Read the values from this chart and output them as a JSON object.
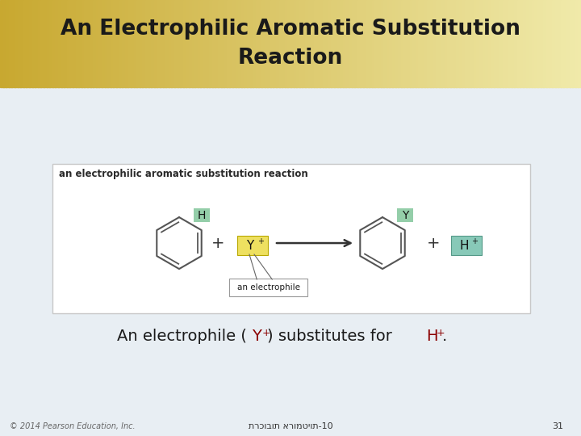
{
  "title_line1": "An Electrophilic Aromatic Substitution",
  "title_line2": "Reaction",
  "title_fontsize": 19,
  "title_color": "#1a1a1a",
  "bg_bottom_color": "#e8eef3",
  "subtitle_text": "an electrophilic aromatic substitution reaction",
  "subtitle_fontsize": 8.5,
  "desc_fontsize": 14,
  "footer_hebrew": "תרכובות ארומטיות-10",
  "footer_num": "31",
  "footer_copy": "© 2014 Pearson Education, Inc.",
  "footer_fontsize": 8,
  "box_bg": "#ffffff",
  "box_border": "#c8c8c8",
  "highlight_green": "#88c9a0",
  "highlight_yellow": "#eee060",
  "highlight_hplus": "#88c9b8",
  "electrophile_label": "an electrophile",
  "Y_color": "#8b0000",
  "H_color": "#8b0000",
  "ring_color": "#555555",
  "text_color": "#1a1a1a"
}
